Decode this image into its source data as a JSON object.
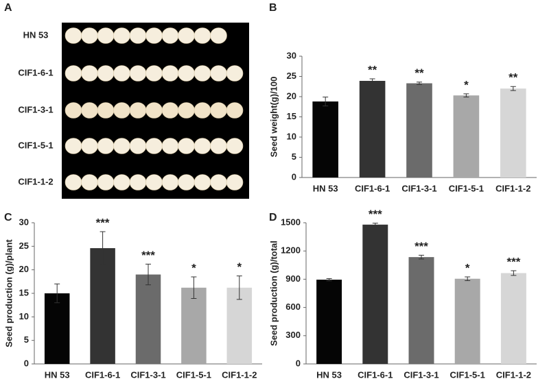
{
  "photo": {
    "panel_label": "A",
    "rows": [
      "HN 53",
      "CIF1-6-1",
      "CIF1-3-1",
      "CIF1-5-1",
      "CIF1-1-2"
    ]
  },
  "chart_data": [
    {
      "type": "bar",
      "panel_label": "B",
      "ylabel": "Seed weight(g)/100",
      "categories": [
        "HN 53",
        "CIF1-6-1",
        "CIF1-3-1",
        "CIF1-5-1",
        "CIF1-1-2"
      ],
      "values": [
        18.8,
        23.9,
        23.3,
        20.3,
        22.0
      ],
      "errors": [
        1.1,
        0.5,
        0.3,
        0.4,
        0.5
      ],
      "annotations": [
        null,
        "**",
        "**",
        "*",
        "**"
      ],
      "colors": [
        "#050505",
        "#333333",
        "#6b6b6b",
        "#a8a8a8",
        "#d6d6d6"
      ],
      "ylim": [
        0,
        30
      ],
      "yticks": [
        0,
        5,
        10,
        15,
        20,
        25,
        30
      ]
    },
    {
      "type": "bar",
      "panel_label": "C",
      "ylabel": "Seed production (g)/plant",
      "categories": [
        "HN 53",
        "CIF1-6-1",
        "CIF1-3-1",
        "CIF1-5-1",
        "CIF1-1-2"
      ],
      "values": [
        15.0,
        24.6,
        19.0,
        16.2,
        16.2
      ],
      "errors": [
        2.0,
        3.5,
        2.2,
        2.3,
        2.5
      ],
      "annotations": [
        null,
        "***",
        "***",
        "*",
        "*"
      ],
      "colors": [
        "#050505",
        "#333333",
        "#6b6b6b",
        "#a8a8a8",
        "#d6d6d6"
      ],
      "ylim": [
        0,
        30
      ],
      "yticks": [
        0,
        5,
        10,
        15,
        20,
        25,
        30
      ]
    },
    {
      "type": "bar",
      "panel_label": "D",
      "ylabel": "Seed production (g)/total",
      "categories": [
        "HN 53",
        "CIF1-6-1",
        "CIF1-3-1",
        "CIF1-5-1",
        "CIF1-1-2"
      ],
      "values": [
        895,
        1480,
        1135,
        905,
        965
      ],
      "errors": [
        12,
        15,
        20,
        20,
        25
      ],
      "annotations": [
        null,
        "***",
        "***",
        "*",
        "***"
      ],
      "colors": [
        "#050505",
        "#333333",
        "#6b6b6b",
        "#a8a8a8",
        "#d6d6d6"
      ],
      "ylim": [
        0,
        1500
      ],
      "yticks": [
        0,
        300,
        600,
        900,
        1200,
        1500
      ]
    }
  ]
}
